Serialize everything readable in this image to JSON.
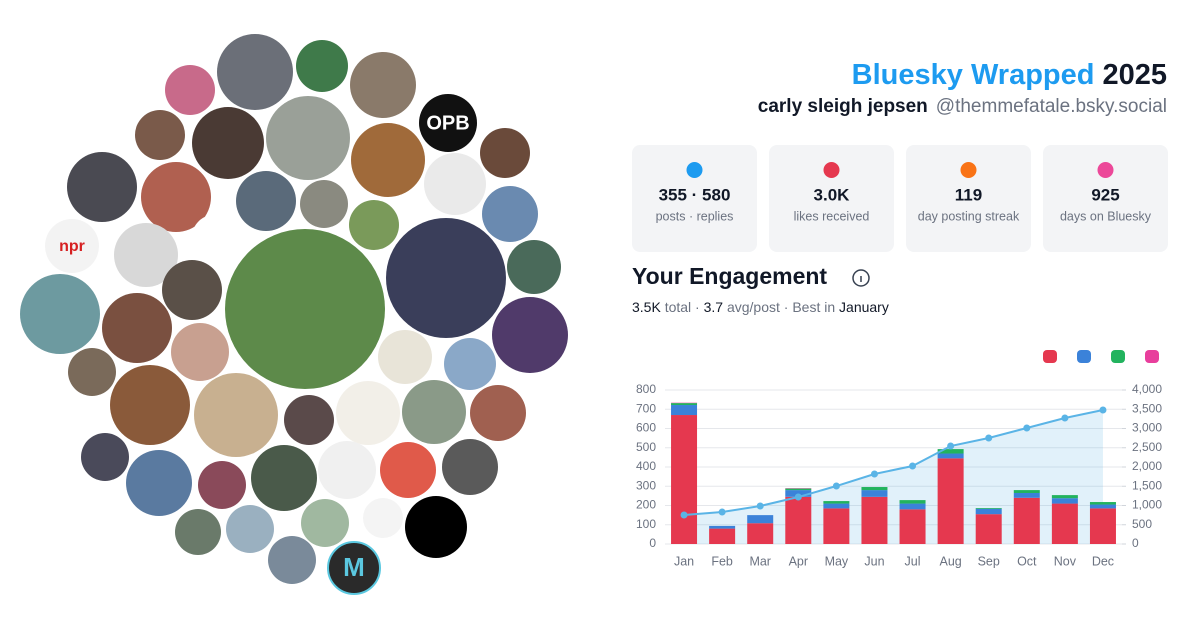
{
  "header": {
    "title": "Bluesky Wrapped",
    "year": "2025",
    "name": "carly sleigh jepsen",
    "handle": "@themmefatale.bsky.social"
  },
  "stats": [
    {
      "value": "355 · 580",
      "label": "posts · replies"
    },
    {
      "value": "3.0K",
      "label": "likes received"
    },
    {
      "value": "119",
      "label": "day posting streak"
    },
    {
      "value": "925",
      "label": "days on Bluesky"
    }
  ],
  "avatar_labels": [
    "OPB",
    "npr",
    "M"
  ],
  "engagement": {
    "title": "Your Engagement",
    "summary": [
      {
        "text": "3.5K",
        "strong": true
      },
      {
        "text": " total · ",
        "strong": false
      },
      {
        "text": "3.7",
        "strong": true
      },
      {
        "text": " avg/post · Best in ",
        "strong": false
      },
      {
        "text": "January",
        "strong": true
      }
    ]
  },
  "chart_data": {
    "type": "bar",
    "stacked": true,
    "grid": true,
    "categories": [
      "Jan",
      "Feb",
      "Mar",
      "Apr",
      "May",
      "Jun",
      "Jul",
      "Aug",
      "Sep",
      "Oct",
      "Nov",
      "Dec"
    ],
    "series": [
      {
        "color": "#e5384f",
        "values": [
          670,
          80,
          108,
          245,
          185,
          245,
          180,
          445,
          155,
          240,
          210,
          185
        ]
      },
      {
        "color": "#3b82d9",
        "values": [
          52,
          14,
          42,
          35,
          25,
          35,
          30,
          25,
          28,
          25,
          28,
          20
        ]
      },
      {
        "color": "#22b35e",
        "values": [
          10,
          0,
          0,
          8,
          13,
          16,
          18,
          23,
          4,
          15,
          16,
          13
        ]
      },
      {
        "color": "#e83e9c",
        "values": [
          2,
          0,
          0,
          2,
          0,
          0,
          0,
          0,
          0,
          0,
          0,
          0
        ]
      },
      {
        "type": "line",
        "axis": "y2",
        "color": "#5ab4e6",
        "values": [
          753,
          830,
          987,
          1220,
          1506,
          1818,
          2026,
          2545,
          2753,
          3013,
          3273,
          3481
        ]
      }
    ],
    "ylim": [
      0,
      800
    ],
    "yticks": [
      0,
      100,
      200,
      300,
      400,
      500,
      600,
      700,
      800
    ],
    "y2lim": [
      0,
      4000
    ],
    "y2ticks": [
      0,
      500,
      {
        "value": 1000,
        "label": "1,000"
      },
      {
        "value": 1500,
        "label": "1,500"
      },
      {
        "value": 2000,
        "label": "2,000"
      },
      {
        "value": 2500,
        "label": "2,500"
      },
      {
        "value": 3000,
        "label": "3,000"
      },
      {
        "value": 3500,
        "label": "3,500"
      },
      {
        "value": 4000,
        "label": "4,000"
      }
    ]
  }
}
